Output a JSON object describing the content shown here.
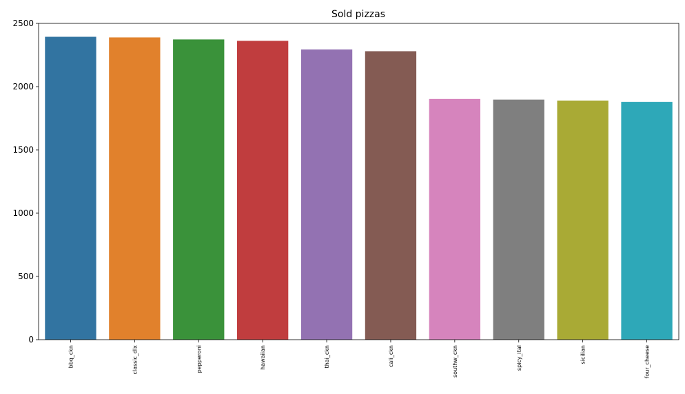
{
  "chart_data": {
    "type": "bar",
    "title": "Sold pizzas",
    "xlabel": "",
    "ylabel": "",
    "categories": [
      "bbq_ckn",
      "classic_dlx",
      "pepperoni",
      "hawaiian",
      "thai_ckn",
      "cali_ckn",
      "southw_ckn",
      "spicy_ital",
      "sicilian",
      "four_cheese"
    ],
    "values": [
      2394,
      2389,
      2373,
      2362,
      2294,
      2280,
      1903,
      1898,
      1889,
      1880
    ],
    "ylim": [
      0,
      2500
    ],
    "yticks": [
      0,
      500,
      1000,
      1500,
      2000,
      2500
    ],
    "grid": false,
    "colors": [
      "#3274a1",
      "#e1812c",
      "#3a923a",
      "#c03d3e",
      "#9372b2",
      "#845b53",
      "#d684bd",
      "#7f7f7f",
      "#a9aa35",
      "#2ea8b8"
    ]
  }
}
